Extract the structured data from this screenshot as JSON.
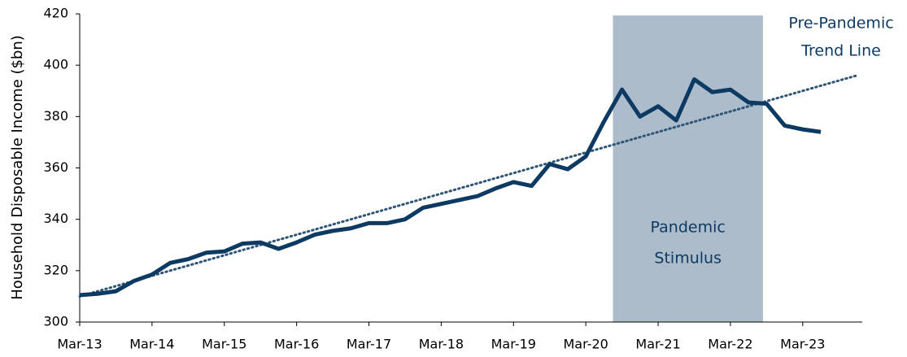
{
  "chart_data": {
    "type": "line",
    "y_axis_label": "Household Disposable Income ($bn)",
    "categories": [
      "Mar-13",
      null,
      null,
      null,
      "Mar-14",
      null,
      null,
      null,
      "Mar-15",
      null,
      null,
      null,
      "Mar-16",
      null,
      null,
      null,
      "Mar-17",
      null,
      null,
      null,
      "Mar-18",
      null,
      null,
      null,
      "Mar-19",
      null,
      null,
      null,
      "Mar-20",
      null,
      null,
      null,
      "Mar-21",
      null,
      null,
      null,
      "Mar-22",
      null,
      null,
      null,
      "Mar-23",
      null,
      null,
      null
    ],
    "series": [
      {
        "name": "Household Disposable Income",
        "color": "#0d3a63",
        "style": "solid",
        "values": [
          310.5,
          311,
          312,
          316,
          318.5,
          323,
          324.5,
          327,
          327.5,
          330.5,
          331,
          328.5,
          331,
          334,
          335.5,
          336.5,
          338.5,
          338.5,
          340,
          344.5,
          346,
          347.5,
          349,
          352,
          354.5,
          353,
          361.5,
          359.5,
          364.5,
          378,
          390.5,
          380,
          384,
          378.5,
          394.5,
          389.5,
          390.5,
          385.5,
          385,
          376.5,
          375,
          374,
          null,
          null
        ]
      },
      {
        "name": "Pre-Pandemic Trend Line",
        "color": "#2e5576",
        "style": "dotted",
        "values": [
          310,
          312,
          314,
          316,
          318,
          320,
          322,
          324,
          326,
          328,
          330,
          332,
          334,
          336,
          338,
          340,
          342,
          344,
          346,
          348,
          350,
          352,
          354,
          356,
          358,
          360,
          362,
          364,
          366,
          368,
          370,
          372,
          374,
          376,
          378,
          380,
          382,
          384,
          386,
          388,
          390,
          392,
          394,
          396
        ]
      }
    ],
    "trend_label": [
      "Pre-Pandemic",
      "Trend Line"
    ],
    "highlight": {
      "label": [
        "Pandemic",
        "Stimulus"
      ],
      "start": 29.5,
      "end": 37.8,
      "color": "#adbccb"
    },
    "ylim": [
      300,
      420
    ],
    "yticks": [
      300,
      320,
      340,
      360,
      380,
      400,
      420
    ],
    "grid": false
  }
}
